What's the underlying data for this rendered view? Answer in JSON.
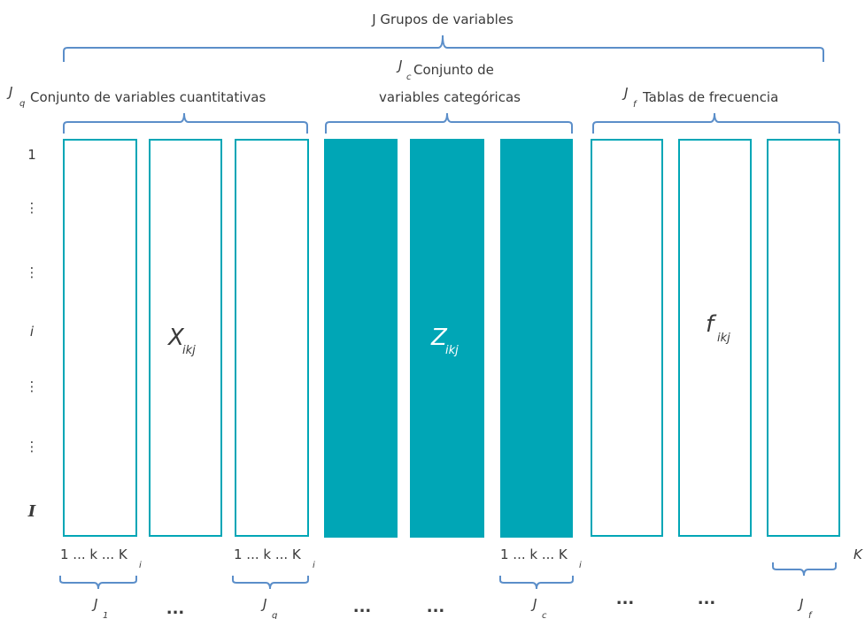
{
  "top_label": "J Grupos de variables",
  "groups": {
    "quant": {
      "label_main": "J",
      "label_sub": "q",
      "label_text": "Conjunto de variables cuantitativas"
    },
    "cat": {
      "label_main": "J",
      "label_sub": "c",
      "label_text_1": "Conjunto de",
      "label_text_2": "variables categóricas"
    },
    "freq": {
      "label_main": "J",
      "label_sub": "f",
      "label_text": "Tablas de frecuencia"
    }
  },
  "row_labels": {
    "first": "1",
    "vdots_1": "⋮",
    "vdots_2": "⋮",
    "i": "i",
    "vdots_3": "⋮",
    "vdots_4": "⋮",
    "last": "I"
  },
  "center_labels": {
    "x": {
      "main": "X",
      "sub": "ikj"
    },
    "z": {
      "main": "Z",
      "sub": "ikj"
    },
    "f": {
      "main": "f",
      "sub": "ikj"
    }
  },
  "column_index": {
    "a": {
      "text": "1 ... k ... K",
      "sub": "i"
    },
    "b": {
      "text": "1 ... k ... K",
      "sub": "i"
    },
    "c": {
      "text": "1 ... k ... K",
      "sub": "i"
    },
    "k_right": "K"
  },
  "bottom": {
    "j1": {
      "main": "J",
      "sub": "1"
    },
    "jq": {
      "main": "J",
      "sub": "q"
    },
    "jc": {
      "main": "J",
      "sub": "c"
    },
    "jf": {
      "main": "J",
      "sub": "f"
    },
    "dots": "..."
  },
  "colors": {
    "teal": "#00a6b6",
    "brace": "#5b8ec9",
    "text": "#3a3a3a"
  }
}
